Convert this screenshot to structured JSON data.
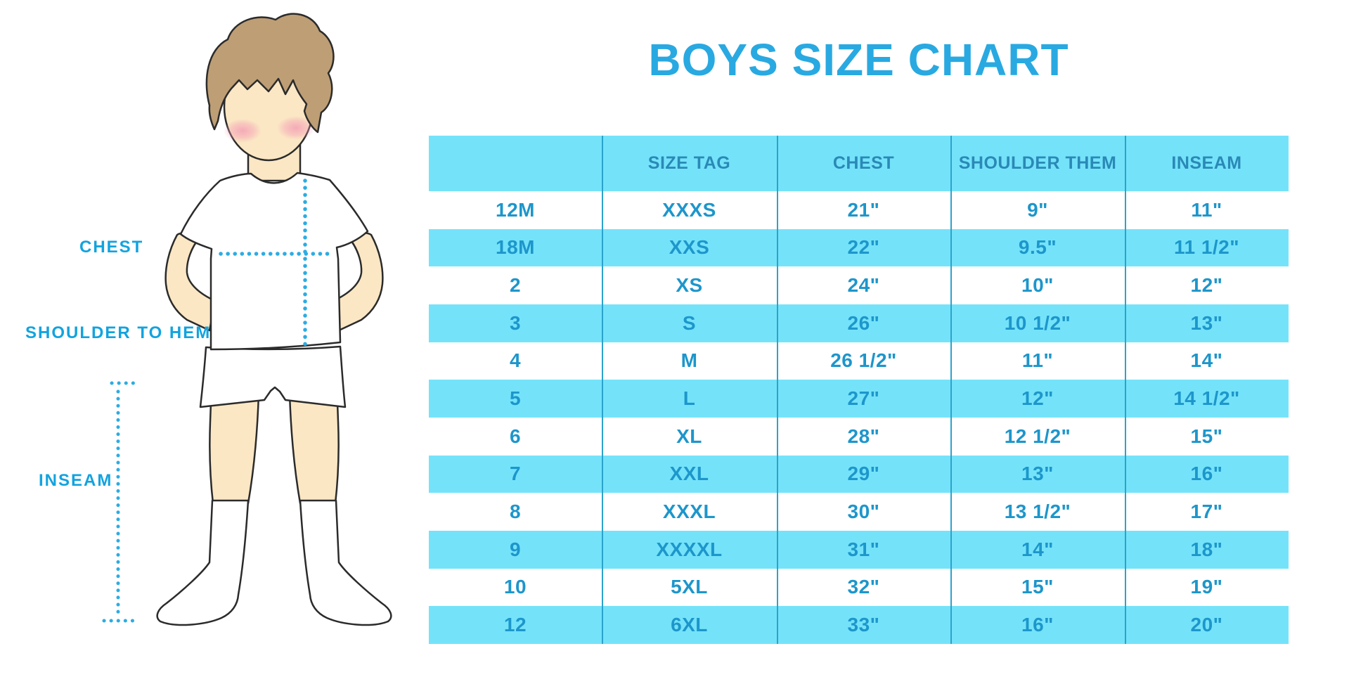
{
  "page": {
    "title": "BOYS SIZE CHART"
  },
  "figure": {
    "labels": {
      "chest": "CHEST",
      "shoulder_to_hem": "SHOULDER TO HEM",
      "inseam": "INSEAM"
    }
  },
  "colors": {
    "title_blue": "#29A9E1",
    "label_blue": "#12A3DF",
    "row_cyan": "#74E3FA",
    "divider_blue": "#2BA3CB",
    "table_text_blue": "#1D96CB",
    "header_text_blue": "#2A89B6",
    "dotted_line_blue": "#2CACE3",
    "hair_brown": "#BE9E75",
    "skin": "#FBE7C4",
    "blush_pink": "#F4A0B5"
  },
  "chart_data": {
    "type": "table",
    "title": "BOYS SIZE CHART",
    "columns": [
      "",
      "SIZE TAG",
      "CHEST",
      "SHOULDER THEM",
      "INSEAM"
    ],
    "rows": [
      [
        "12M",
        "XXXS",
        "21\"",
        "9\"",
        "11\""
      ],
      [
        "18M",
        "XXS",
        "22\"",
        "9.5\"",
        "11 1/2\""
      ],
      [
        "2",
        "XS",
        "24\"",
        "10\"",
        "12\""
      ],
      [
        "3",
        "S",
        "26\"",
        "10 1/2\"",
        "13\""
      ],
      [
        "4",
        "M",
        "26 1/2\"",
        "11\"",
        "14\""
      ],
      [
        "5",
        "L",
        "27\"",
        "12\"",
        "14 1/2\""
      ],
      [
        "6",
        "XL",
        "28\"",
        "12 1/2\"",
        "15\""
      ],
      [
        "7",
        "XXL",
        "29\"",
        "13\"",
        "16\""
      ],
      [
        "8",
        "XXXL",
        "30\"",
        "13 1/2\"",
        "17\""
      ],
      [
        "9",
        "XXXXL",
        "31\"",
        "14\"",
        "18\""
      ],
      [
        "10",
        "5XL",
        "32\"",
        "15\"",
        "19\""
      ],
      [
        "12",
        "6XL",
        "33\"",
        "16\"",
        "20\""
      ]
    ]
  }
}
